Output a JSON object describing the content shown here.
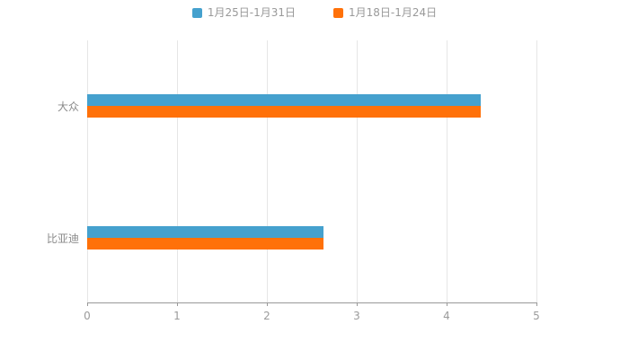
{
  "chart_data": {
    "type": "bar",
    "orientation": "horizontal",
    "title": "",
    "categories": [
      "大众",
      "比亚迪"
    ],
    "series": [
      {
        "name": "1月25日-1月31日",
        "color": "#45a1ce",
        "values": [
          4.38,
          2.63
        ]
      },
      {
        "name": "1月18日-1月24日",
        "color": "#ff7109",
        "values": [
          4.38,
          2.63
        ]
      }
    ],
    "xlabel": "",
    "ylabel": "",
    "xlim": [
      0,
      5
    ],
    "xticks": [
      0,
      1,
      2,
      3,
      4,
      5
    ],
    "grid": true,
    "legend_position": "top",
    "colors": {
      "gridline": "#e6e6e6",
      "axis_line": "#999999",
      "tick_text": "#9b9b9b",
      "category_text": "#8a8a8a",
      "legend_text": "#999999",
      "background": "#ffffff"
    }
  }
}
